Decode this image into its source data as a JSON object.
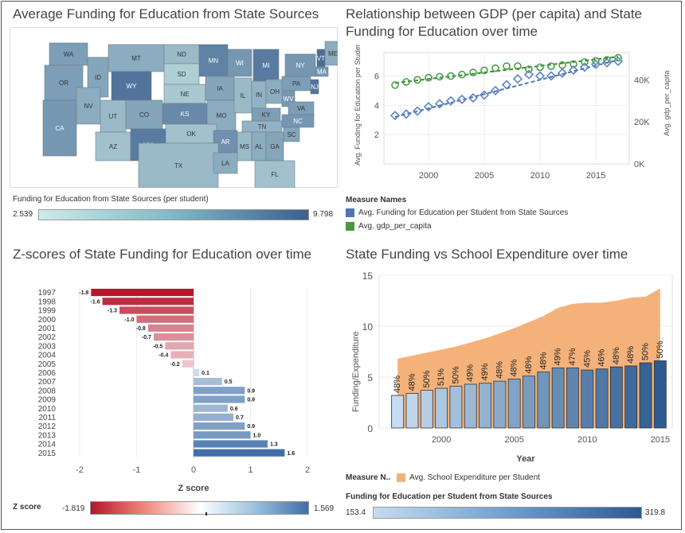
{
  "panel_map": {
    "title": "Average Funding for Education from State Sources",
    "states": [
      "WA",
      "OR",
      "ID",
      "MT",
      "ND",
      "MN",
      "WI",
      "MI",
      "SD",
      "WY",
      "NE",
      "IA",
      "NV",
      "UT",
      "CO",
      "KS",
      "MO",
      "IL",
      "IN",
      "OH",
      "PA",
      "NY",
      "VT",
      "ME",
      "MA",
      "CA",
      "AZ",
      "NM",
      "OK",
      "AR",
      "TN",
      "KY",
      "WV",
      "VA",
      "NC",
      "MS",
      "AL",
      "GA",
      "SC",
      "TX",
      "LA",
      "FL",
      "NJ"
    ],
    "legend_title": "Funding for Education from State Sources (per student)",
    "legend_min": "2.539",
    "legend_max": "9.798",
    "colors": {
      "low": "#cdebe7",
      "high": "#3c5f8f"
    }
  },
  "panel_gdp": {
    "title": "Relationship between GDP (per capita) and State Funding for Education over time",
    "chart_data": {
      "type": "scatter",
      "x": [
        1997,
        1998,
        1999,
        2000,
        2001,
        2002,
        2003,
        2004,
        2005,
        2006,
        2007,
        2008,
        2009,
        2010,
        2011,
        2012,
        2013,
        2014,
        2015,
        2016,
        2017
      ],
      "series": [
        {
          "name": "Avg. Funding for Education per Student from State Sources",
          "axis": "left",
          "color": "#5b84c4",
          "values": [
            3.3,
            3.4,
            3.6,
            3.9,
            4.1,
            4.3,
            4.4,
            4.5,
            4.7,
            5.0,
            5.4,
            5.8,
            6.1,
            6.0,
            6.0,
            6.2,
            6.4,
            6.6,
            6.8,
            6.9,
            7.0
          ]
        },
        {
          "name": "Avg. gdp_per_capita",
          "axis": "right",
          "color": "#4a9e4a",
          "values": [
            37500,
            39000,
            40000,
            41000,
            41500,
            41800,
            42500,
            43500,
            44500,
            45500,
            46500,
            46500,
            45000,
            46000,
            46500,
            47000,
            47500,
            48500,
            49000,
            49500,
            50500
          ]
        }
      ],
      "xticks": [
        "2000",
        "2005",
        "2010",
        "2015"
      ],
      "yticks_left": [
        "2",
        "4",
        "6"
      ],
      "yticks_right": [
        "0K",
        "20K",
        "40K"
      ],
      "ylabel_left": "Avg. Funding for Education per Student from State Sources",
      "ylabel_right": "Avg. gdp_per_capita"
    },
    "legend_title": "Measure Names",
    "legend_items": [
      {
        "label": "Avg. Funding for Education per Student from State Sources",
        "color": "#4f74b0"
      },
      {
        "label": "Avg. gdp_per_capita",
        "color": "#4a9a3e"
      }
    ]
  },
  "panel_z": {
    "title": "Z-scores of State Funding for Education over time",
    "chart_data": {
      "type": "bar",
      "categories": [
        "1997",
        "1998",
        "1999",
        "2000",
        "2001",
        "2002",
        "2003",
        "2004",
        "2005",
        "2006",
        "2007",
        "2008",
        "2009",
        "2010",
        "2011",
        "2012",
        "2013",
        "2014",
        "2015"
      ],
      "values": [
        -1.8,
        -1.6,
        -1.3,
        -1.0,
        -0.8,
        -0.7,
        -0.5,
        -0.4,
        -0.2,
        0.1,
        0.5,
        0.9,
        0.9,
        0.6,
        0.7,
        0.9,
        1.0,
        1.3,
        1.6
      ],
      "labels": [
        "-1.8",
        "-1.6",
        "-1.3",
        "-1.0",
        "-0.8",
        "-0.7",
        "-0.5",
        "-0.4",
        "-0.2",
        "0.1",
        "0.5",
        "0.9",
        "0.9",
        "0.6",
        "0.7",
        "0.9",
        "1.0",
        "1.3",
        "1.6"
      ],
      "xticks": [
        "-2",
        "-1",
        "0",
        "1",
        "2"
      ],
      "xlabel": "Z score",
      "xlim": [
        -2,
        2
      ]
    },
    "legend_title": "Z score",
    "legend_min": "-1.819",
    "legend_max": "1.569"
  },
  "panel_exp": {
    "title": "State Funding vs School Expenditure over time",
    "chart_data": {
      "type": "bar",
      "categories": [
        "1997",
        "1998",
        "1999",
        "2000",
        "2001",
        "2002",
        "2003",
        "2004",
        "2005",
        "2006",
        "2007",
        "2008",
        "2009",
        "2010",
        "2011",
        "2012",
        "2013",
        "2014",
        "2015"
      ],
      "values": [
        3.2,
        3.4,
        3.7,
        3.9,
        4.1,
        4.3,
        4.4,
        4.6,
        4.8,
        5.1,
        5.5,
        5.9,
        5.9,
        5.7,
        5.8,
        6.0,
        6.1,
        6.4,
        6.6
      ],
      "pct_labels": [
        "48%",
        "48%",
        "50%",
        "51%",
        "50%",
        "49%",
        "49%",
        "48%",
        "48%",
        "48%",
        "48%",
        "49%",
        "47%",
        "45%",
        "46%",
        "48%",
        "48%",
        "50%",
        "50%"
      ],
      "area_name": "Avg. School Expenditure per Student",
      "area_values": [
        6.8,
        7.1,
        7.4,
        7.7,
        8.0,
        8.4,
        8.8,
        9.3,
        9.8,
        10.4,
        11.0,
        11.8,
        12.2,
        12.3,
        12.3,
        12.5,
        12.8,
        12.9,
        13.7
      ],
      "xticks": [
        "2000",
        "2005",
        "2010",
        "2015"
      ],
      "yticks": [
        "0",
        "5",
        "10",
        "15"
      ],
      "xlabel": "Year",
      "ylabel": "Funding/Expenditure",
      "ylim": [
        0,
        15
      ]
    },
    "legend_title": "Measure N..",
    "legend_label": "Avg. School Expenditure per Student",
    "funding_legend_title": "Funding for Education per Student from State Sources",
    "funding_min": "153.4",
    "funding_max": "319.8"
  }
}
